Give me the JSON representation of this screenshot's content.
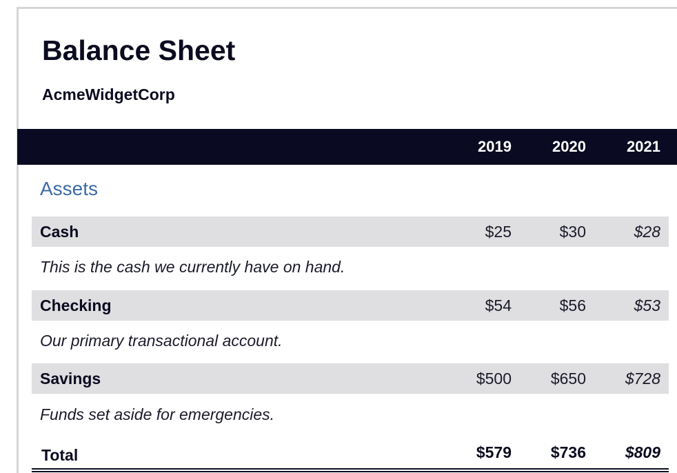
{
  "document": {
    "title": "Balance Sheet",
    "company": "AcmeWidgetCorp"
  },
  "columns": [
    "2019",
    "2020",
    "2021"
  ],
  "section": {
    "title": "Assets"
  },
  "rows": [
    {
      "label": "Cash",
      "values": [
        "$25",
        "$30",
        "$28"
      ],
      "description": "This is the cash we currently have on hand."
    },
    {
      "label": "Checking",
      "values": [
        "$54",
        "$56",
        "$53"
      ],
      "description": "Our primary transactional account."
    },
    {
      "label": "Savings",
      "values": [
        "$500",
        "$650",
        "$728"
      ],
      "description": "Funds set aside for emergencies."
    }
  ],
  "total": {
    "label": "Total",
    "values": [
      "$579",
      "$736",
      "$809"
    ]
  },
  "colors": {
    "header_bar": "#0a0b22",
    "section_title": "#3e6aa5",
    "row_band": "#dfdfe1"
  }
}
